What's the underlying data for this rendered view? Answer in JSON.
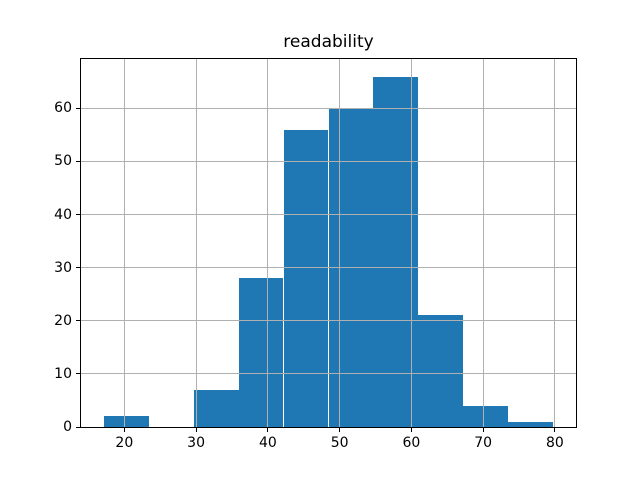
{
  "figure": {
    "background": "#ffffff"
  },
  "chart_data": {
    "type": "histogram",
    "title": "readability",
    "xlabel": "",
    "ylabel": "",
    "bin_edges": [
      17.1,
      23.37,
      29.64,
      35.91,
      42.18,
      48.45,
      54.72,
      60.99,
      67.26,
      73.53,
      79.8
    ],
    "counts": [
      2,
      0,
      7,
      28,
      56,
      60,
      66,
      21,
      4,
      1
    ],
    "x_ticks": [
      20,
      30,
      40,
      50,
      60,
      70,
      80
    ],
    "y_ticks": [
      0,
      10,
      20,
      30,
      40,
      50,
      60
    ],
    "xlim": [
      13.96,
      82.94
    ],
    "ylim": [
      0,
      69.3
    ],
    "bar_color": "#1f77b4",
    "grid_color": "#b0b0b0",
    "axis_color": "#000000",
    "grid": true,
    "legend": false
  }
}
